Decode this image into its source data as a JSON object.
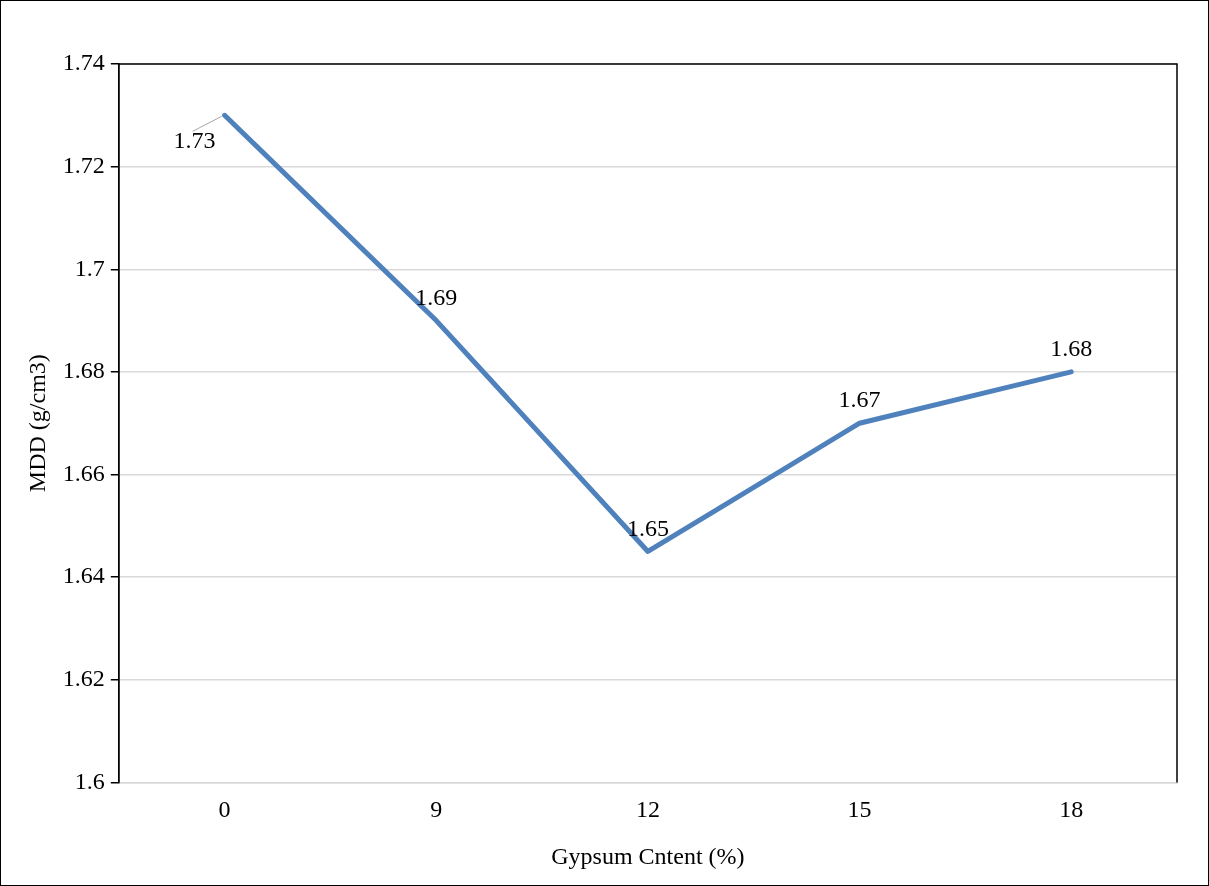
{
  "chart_data": {
    "type": "line",
    "xlabel": "Gypsum Cntent (%)",
    "ylabel": "MDD (g/cm3)",
    "categories": [
      "0",
      "9",
      "12",
      "15",
      "18"
    ],
    "series": [
      {
        "color": "#4f81bd",
        "values": [
          1.73,
          1.69,
          1.645,
          1.67,
          1.68
        ],
        "value_labels": [
          "1.73",
          "1.69",
          "1.65",
          "1.67",
          "1.68"
        ]
      }
    ],
    "ylim": [
      1.6,
      1.74
    ],
    "yticks": [
      1.6,
      1.62,
      1.64,
      1.66,
      1.68,
      1.7,
      1.72,
      1.74
    ],
    "grid": "y",
    "legend": false,
    "marker": "none",
    "line_style": "solid"
  }
}
